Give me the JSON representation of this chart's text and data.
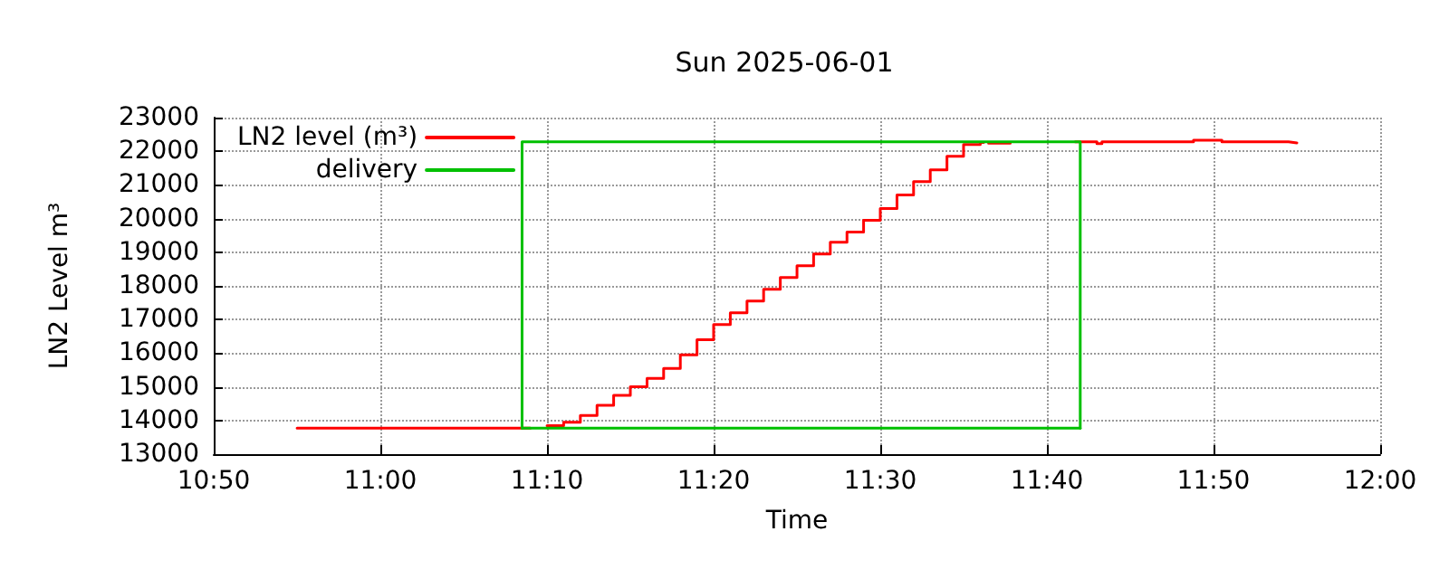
{
  "chart_data": {
    "type": "step",
    "title": "Sun 2025-06-01",
    "xlabel": "Time",
    "ylabel": "LN2 Level m³",
    "series": [
      {
        "name": "LN2 level (m³)",
        "color": "#ff0000",
        "x": [
          10.9167,
          11.1417,
          11.15,
          11.1667,
          11.1833,
          11.2,
          11.2167,
          11.2333,
          11.25,
          11.2667,
          11.2833,
          11.3,
          11.3167,
          11.3333,
          11.35,
          11.3667,
          11.3833,
          11.4,
          11.4167,
          11.4333,
          11.45,
          11.4667,
          11.4833,
          11.5,
          11.5167,
          11.5333,
          11.55,
          11.5667,
          11.5833,
          11.6,
          11.6033,
          11.6083,
          11.625,
          11.63,
          11.695,
          11.7167,
          11.7217,
          11.8133,
          11.8417,
          11.9083,
          11.9167
        ],
        "values": [
          13770,
          13770,
          null,
          13850,
          13950,
          14150,
          14450,
          14750,
          15000,
          15250,
          15550,
          15950,
          16400,
          16850,
          17200,
          17550,
          17900,
          18250,
          18600,
          18950,
          19300,
          19600,
          19950,
          20300,
          20700,
          21100,
          21450,
          21850,
          22200,
          22260,
          null,
          22240,
          22240,
          null,
          22280,
          22230,
          22280,
          22330,
          22280,
          22250,
          22250
        ]
      },
      {
        "name": "delivery",
        "color": "#00c000",
        "type": "line",
        "x": [
          11.1417,
          11.1417,
          11.7,
          11.7
        ],
        "values": [
          13770,
          22280,
          22280,
          13770
        ]
      },
      {
        "color": "#00c000",
        "type": "line",
        "x": [
          11.1417,
          11.7
        ],
        "values": [
          13770,
          13770
        ]
      }
    ],
    "xlim": [
      10.8333,
      12
    ],
    "xticks": [
      {
        "value": 10.8333,
        "label": "10:50"
      },
      {
        "value": 11,
        "label": "11:00"
      },
      {
        "value": 11.1667,
        "label": "11:10"
      },
      {
        "value": 11.3333,
        "label": "11:20"
      },
      {
        "value": 11.5,
        "label": "11:30"
      },
      {
        "value": 11.6667,
        "label": "11:40"
      },
      {
        "value": 11.8333,
        "label": "11:50"
      },
      {
        "value": 12,
        "label": "12:00"
      }
    ],
    "ylim": [
      13000,
      23000
    ],
    "yticks": [
      13000,
      14000,
      15000,
      16000,
      17000,
      18000,
      19000,
      20000,
      21000,
      22000,
      23000
    ],
    "grid": true,
    "legend": "top left",
    "marker": "none",
    "line_style": "solid"
  }
}
